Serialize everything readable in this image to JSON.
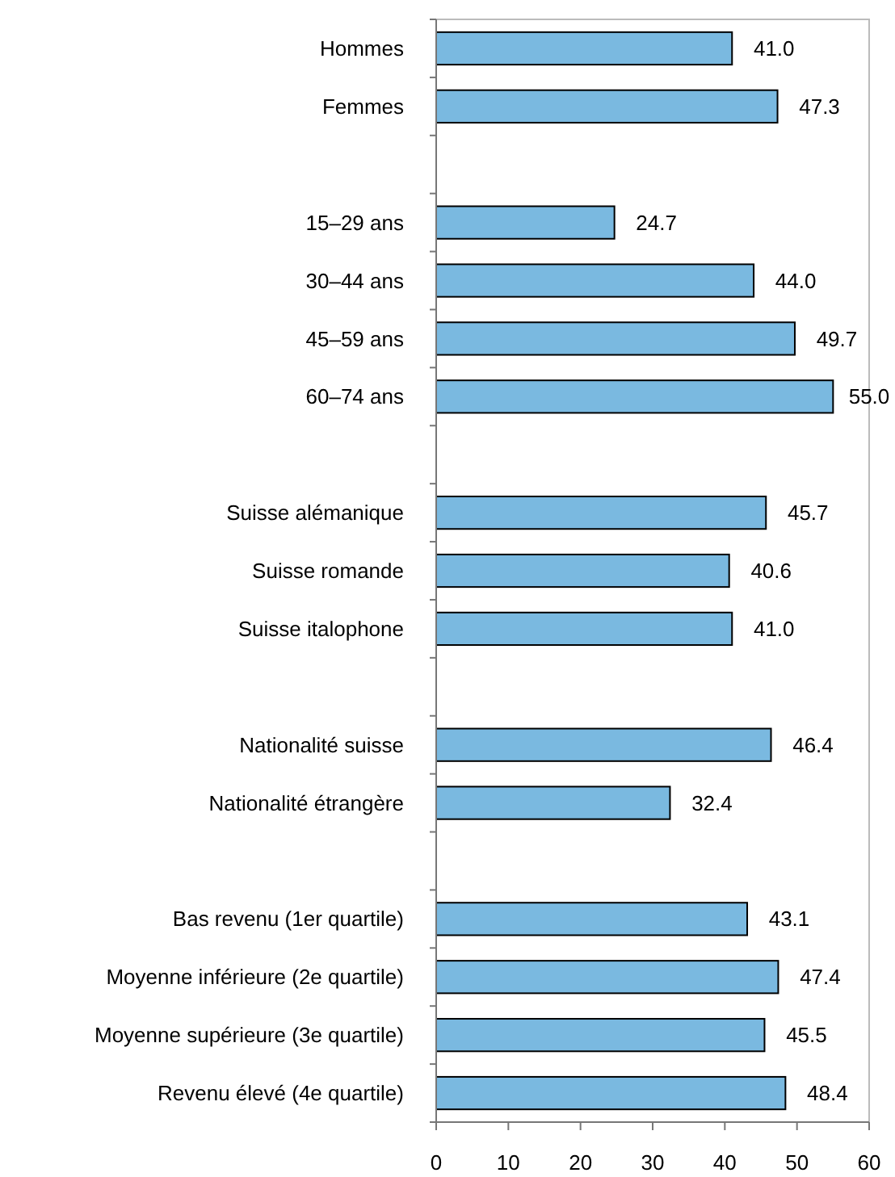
{
  "chart_data": {
    "type": "bar",
    "orientation": "horizontal",
    "categories": [
      "Hommes",
      "Femmes",
      null,
      "15–29 ans",
      "30–44 ans",
      "45–59 ans",
      "60–74 ans",
      null,
      "Suisse alémanique",
      "Suisse romande",
      "Suisse italophone",
      null,
      "Nationalité suisse",
      "Nationalité étrangère",
      null,
      "Bas revenu (1er quartile)",
      "Moyenne inférieure (2e quartile)",
      "Moyenne supérieure (3e quartile)",
      "Revenu élevé (4e quartile)"
    ],
    "values": [
      41.0,
      47.3,
      null,
      24.7,
      44.0,
      49.7,
      55.0,
      null,
      45.7,
      40.6,
      41.0,
      null,
      46.4,
      32.4,
      null,
      43.1,
      47.4,
      45.5,
      48.4
    ],
    "value_labels": [
      "41.0",
      "47.3",
      null,
      "24.7",
      "44.0",
      "49.7",
      "55.0",
      null,
      "45.7",
      "40.6",
      "41.0",
      null,
      "46.4",
      "32.4",
      null,
      "43.1",
      "47.4",
      "45.5",
      "48.4"
    ],
    "color": "#7ab9e0",
    "xlim": [
      0,
      60
    ],
    "xticks": [
      0,
      10,
      20,
      30,
      40,
      50,
      60
    ],
    "grid": false
  }
}
